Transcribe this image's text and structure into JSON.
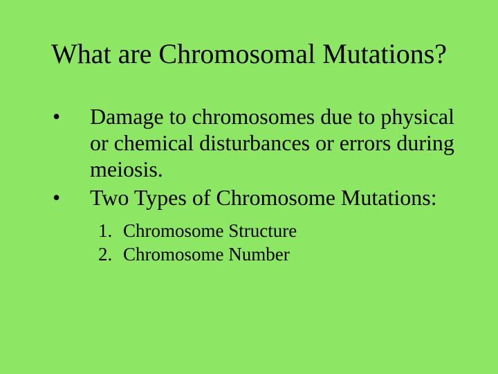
{
  "slide": {
    "background_color": "#8ee665",
    "text_color": "#000000",
    "font_family": "Times New Roman",
    "title": {
      "text": "What are Chromosomal Mutations?",
      "fontsize": 40,
      "weight": "normal",
      "align": "center"
    },
    "bullets": [
      {
        "marker": "•",
        "text": "Damage to chromosomes due to physical or chemical disturbances or errors during meiosis.",
        "fontsize": 32
      },
      {
        "marker": "•",
        "text": "Two Types of Chromosome Mutations:",
        "fontsize": 32
      }
    ],
    "sublist": {
      "fontsize": 27,
      "items": [
        {
          "num": "1.",
          "text": "Chromosome Structure"
        },
        {
          "num": "2.",
          "text": "Chromosome Number"
        }
      ]
    }
  }
}
